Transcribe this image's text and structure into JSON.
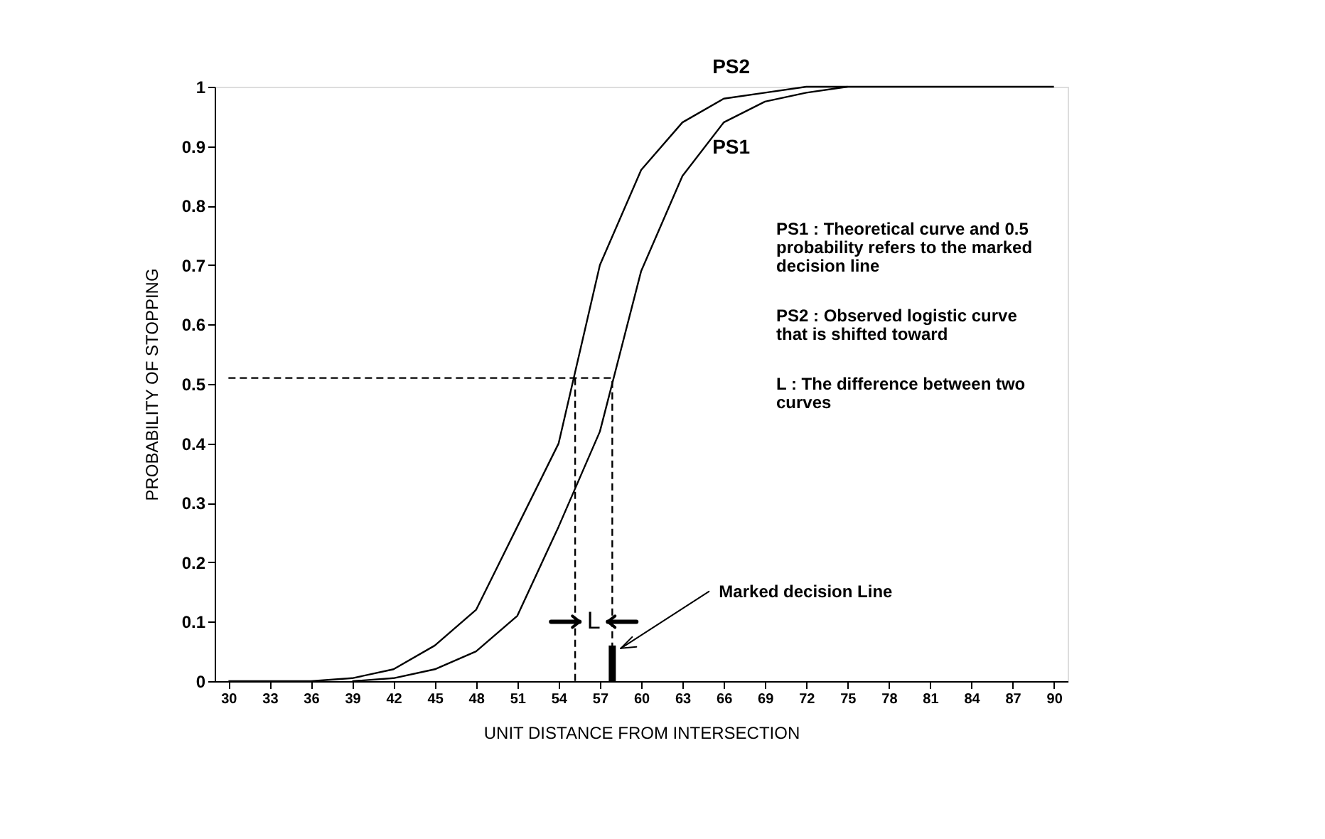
{
  "chart_data": {
    "type": "line",
    "xlabel": "UNIT DISTANCE FROM INTERSECTION",
    "ylabel": "PROBABILITY OF STOPPING",
    "x": [
      30,
      33,
      36,
      39,
      42,
      45,
      48,
      51,
      54,
      57,
      60,
      63,
      66,
      69,
      72,
      75,
      78,
      81,
      84,
      87,
      90
    ],
    "series": [
      {
        "name": "PS2",
        "color": "#000000",
        "values": [
          0,
          0,
          0,
          0.005,
          0.02,
          0.06,
          0.12,
          0.26,
          0.4,
          0.7,
          0.86,
          0.94,
          0.98,
          0.99,
          1,
          1,
          1,
          1,
          1,
          1,
          1
        ]
      },
      {
        "name": "PS1",
        "color": "#000000",
        "values": [
          null,
          null,
          null,
          0,
          0.005,
          0.02,
          0.05,
          0.11,
          0.26,
          0.42,
          0.69,
          0.85,
          0.94,
          0.975,
          0.99,
          1,
          null,
          null,
          null,
          null,
          null
        ]
      },
      {
        "type": "line",
        "line_style": "dashed",
        "color": "#000000",
        "x": [
          30,
          57.9,
          57.9
        ],
        "values": [
          0.51,
          0.51,
          0
        ]
      },
      {
        "type": "line",
        "line_style": "dashed",
        "color": "#000000",
        "x": [
          55.2,
          55.2
        ],
        "values": [
          0.51,
          0
        ]
      },
      {
        "type": "bar",
        "color": "#000000",
        "x": [
          57.9
        ],
        "values": [
          0.06
        ]
      }
    ],
    "annotations": [
      "L",
      {
        "text": "Marked decision Line",
        "x": 57.9,
        "y": 0.06
      },
      "PS1 :  Theoretical curve and 0.5 probability refers to the marked decision line",
      "PS2 :  Observed logistic curve that is shifted toward",
      "L :  The difference between two curves"
    ],
    "xlim": [
      29,
      91
    ],
    "ylim": [
      0,
      1
    ],
    "xticks": [
      30,
      33,
      36,
      39,
      42,
      45,
      48,
      51,
      54,
      57,
      60,
      63,
      66,
      69,
      72,
      75,
      78,
      81,
      84,
      87,
      90
    ],
    "yticks": [
      0,
      0.1,
      0.2,
      0.3,
      0.4,
      0.5,
      0.6,
      0.7,
      0.8,
      0.9,
      1
    ],
    "grid": false,
    "marker": "none",
    "line_style": "solid"
  }
}
